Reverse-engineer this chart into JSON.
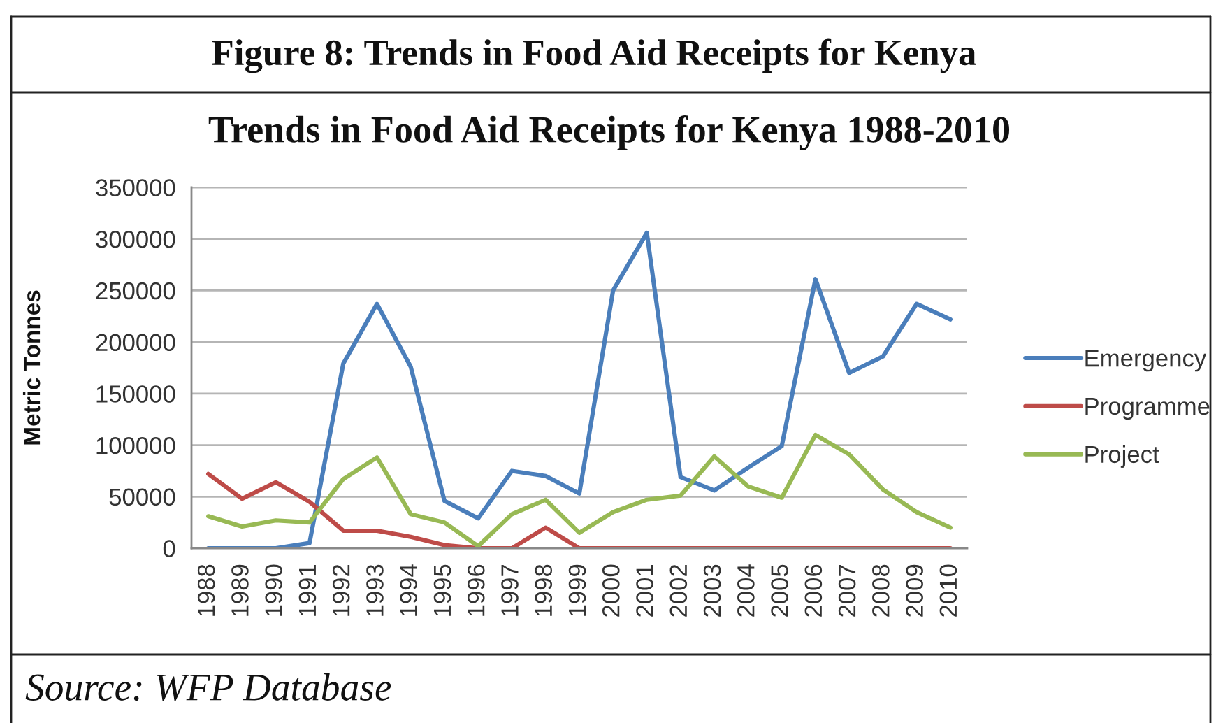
{
  "chart_data": {
    "type": "line",
    "title": "Figure 8: Trends in Food Aid Receipts for Kenya",
    "subtitle": "Trends in Food Aid Receipts for Kenya 1988-2010",
    "ylabel": "Metric Tonnes",
    "annotations": [
      "Source: WFP Database"
    ],
    "categories": [
      "1988",
      "1989",
      "1990",
      "1991",
      "1992",
      "1993",
      "1994",
      "1995",
      "1996",
      "1997",
      "1998",
      "1999",
      "2000",
      "2001",
      "2002",
      "2003",
      "2004",
      "2005",
      "2006",
      "2007",
      "2008",
      "2009",
      "2010"
    ],
    "series": [
      {
        "name": "Emergency",
        "color": "#4a7ebb",
        "values": [
          0,
          0,
          0,
          5000,
          179000,
          237000,
          176000,
          46000,
          29000,
          75000,
          70000,
          53000,
          250000,
          306000,
          69000,
          56000,
          78000,
          99000,
          261000,
          170000,
          186000,
          237000,
          222000
        ]
      },
      {
        "name": "Programme",
        "color": "#be4b48",
        "values": [
          72000,
          48000,
          64000,
          45000,
          17000,
          17000,
          11000,
          3000,
          0,
          0,
          20000,
          0,
          0,
          0,
          0,
          0,
          0,
          0,
          0,
          0,
          0,
          0,
          0
        ]
      },
      {
        "name": "Project",
        "color": "#98b954",
        "values": [
          31000,
          21000,
          27000,
          25000,
          67000,
          88000,
          33000,
          25000,
          2000,
          33000,
          47000,
          15000,
          35000,
          47000,
          51000,
          89000,
          60000,
          49000,
          110000,
          91000,
          57000,
          35000,
          20000
        ]
      }
    ],
    "ylim": [
      0,
      350000
    ],
    "yticks": [
      0,
      50000,
      100000,
      150000,
      200000,
      250000,
      300000,
      350000
    ],
    "grid": "y",
    "legend": "right"
  }
}
